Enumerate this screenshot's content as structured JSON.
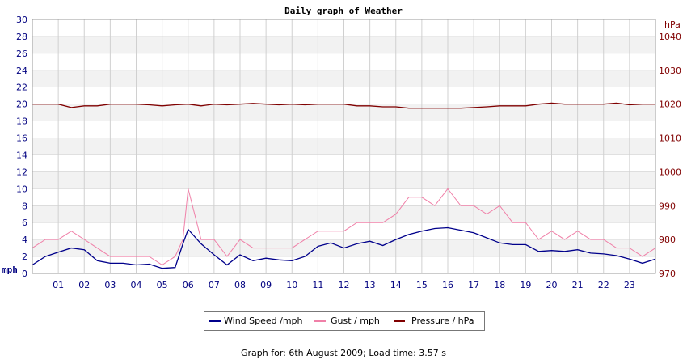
{
  "chart_data": {
    "type": "line",
    "title": "Daily graph of Weather",
    "left_axis": {
      "unit": "mph",
      "min": 0,
      "max": 30,
      "ticks": [
        0,
        2,
        4,
        6,
        8,
        10,
        12,
        14,
        16,
        18,
        20,
        22,
        24,
        26,
        28,
        30
      ],
      "color": "#000080"
    },
    "right_axis": {
      "unit": "hPa",
      "min": 970,
      "max": 1045,
      "ticks": [
        970,
        980,
        990,
        1000,
        1010,
        1020,
        1030,
        1040
      ],
      "color": "#800000"
    },
    "x_axis": {
      "min": 0,
      "max": 24,
      "ticks": [
        "01",
        "02",
        "03",
        "04",
        "05",
        "06",
        "07",
        "08",
        "09",
        "10",
        "11",
        "12",
        "13",
        "14",
        "15",
        "16",
        "17",
        "18",
        "19",
        "20",
        "21",
        "22",
        "23"
      ]
    },
    "colors": {
      "wind": "#00008b",
      "gust": "#f080a8",
      "pressure": "#800000",
      "band": "#f2f2f2",
      "grid": "#d0d0d0"
    },
    "series": [
      {
        "name": "Wind Speed /mph",
        "axis": "left",
        "x": [
          0,
          0.5,
          1,
          1.5,
          2,
          2.5,
          3,
          3.5,
          4,
          4.5,
          5,
          5.5,
          5.8,
          6,
          6.5,
          7,
          7.5,
          8,
          8.5,
          9,
          9.5,
          10,
          10.5,
          11,
          11.5,
          12,
          12.5,
          13,
          13.5,
          14,
          14.5,
          15,
          15.5,
          16,
          16.5,
          17,
          17.5,
          18,
          18.5,
          19,
          19.5,
          20,
          20.5,
          21,
          21.5,
          22,
          22.5,
          23,
          23.5,
          24
        ],
        "values": [
          1,
          2,
          2.5,
          3,
          2.8,
          1.5,
          1.2,
          1.2,
          1,
          1.1,
          0.6,
          0.7,
          3.5,
          5.2,
          3.5,
          2.2,
          1,
          2.2,
          1.5,
          1.8,
          1.6,
          1.5,
          2,
          3.2,
          3.6,
          3,
          3.5,
          3.8,
          3.3,
          4,
          4.6,
          5,
          5.3,
          5.4,
          5.1,
          4.8,
          4.2,
          3.6,
          3.4,
          3.4,
          2.6,
          2.7,
          2.6,
          2.8,
          2.4,
          2.3,
          2.1,
          1.7,
          1.2,
          1.7
        ]
      },
      {
        "name": "Gust / mph",
        "axis": "left",
        "x": [
          0,
          0.5,
          1,
          1.5,
          2,
          2.5,
          3,
          3.5,
          4,
          4.5,
          5,
          5.5,
          5.8,
          6,
          6.5,
          7,
          7.5,
          8,
          8.5,
          9,
          9.5,
          10,
          10.5,
          11,
          11.5,
          12,
          12.5,
          13,
          13.5,
          14,
          14.5,
          15,
          15.5,
          16,
          16.5,
          17,
          17.5,
          18,
          18.5,
          19,
          19.5,
          20,
          20.5,
          21,
          21.5,
          22,
          22.5,
          23,
          23.5,
          24
        ],
        "values": [
          3,
          4,
          4,
          5,
          4,
          3,
          2,
          2,
          2,
          2,
          1,
          2,
          4,
          10,
          4,
          4,
          2,
          4,
          3,
          3,
          3,
          3,
          4,
          5,
          5,
          5,
          6,
          6,
          6,
          7,
          9,
          9,
          8,
          10,
          8,
          8,
          7,
          8,
          6,
          6,
          4,
          5,
          4,
          5,
          4,
          4,
          3,
          3,
          2,
          3
        ]
      },
      {
        "name": "Pressure / hPa",
        "axis": "right",
        "x": [
          0,
          1,
          1.5,
          2,
          2.5,
          3,
          3.5,
          4,
          4.5,
          5,
          5.5,
          6,
          6.5,
          7,
          7.5,
          8,
          8.5,
          9,
          9.5,
          10,
          10.5,
          11,
          11.5,
          12,
          12.5,
          13,
          13.5,
          14,
          14.5,
          15,
          15.5,
          16,
          16.5,
          17,
          17.5,
          18,
          18.5,
          19,
          19.5,
          20,
          20.5,
          21,
          21.5,
          22,
          22.5,
          23,
          23.5,
          24
        ],
        "values": [
          1020,
          1020,
          1019,
          1019.5,
          1019.5,
          1020,
          1020,
          1020,
          1019.8,
          1019.5,
          1019.8,
          1020,
          1019.5,
          1020,
          1019.8,
          1020,
          1020.2,
          1020,
          1019.8,
          1020,
          1019.8,
          1020,
          1020,
          1020,
          1019.5,
          1019.5,
          1019.2,
          1019.2,
          1018.8,
          1018.8,
          1018.8,
          1018.8,
          1018.8,
          1019,
          1019.2,
          1019.5,
          1019.5,
          1019.5,
          1020,
          1020.3,
          1020,
          1020,
          1020,
          1020,
          1020.3,
          1019.8,
          1020,
          1020
        ]
      }
    ],
    "legend": [
      {
        "label": "Wind Speed /mph",
        "color": "#00008b"
      },
      {
        "label": "Gust / mph",
        "color": "#f080a8"
      },
      {
        "label": "Pressure / hPa",
        "color": "#800000"
      }
    ],
    "legend_position": "bottom-center",
    "grid": true
  },
  "footer": "Graph for: 6th August 2009; Load time: 3.57 s"
}
